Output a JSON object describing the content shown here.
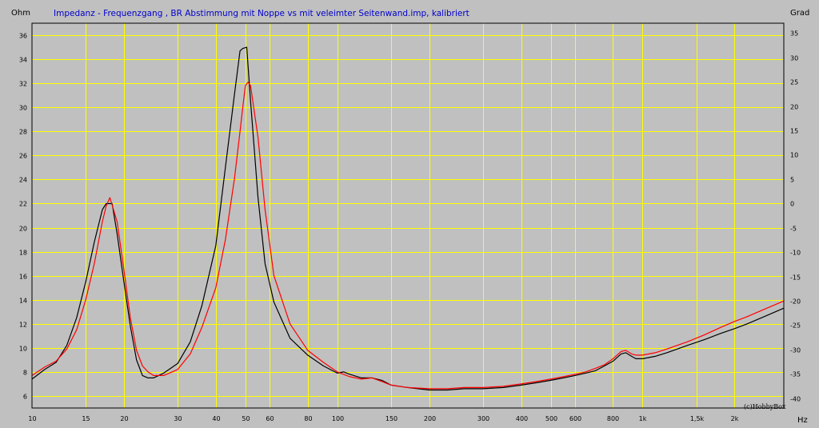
{
  "chart_data": {
    "type": "line",
    "title": "Impedanz - Frequenzgang , BR Abstimmung mit Noppe vs mit veleimter Seitenwand.imp, kalibriert",
    "ylabel_left": "Ohm",
    "ylabel_right": "Grad",
    "xlabel": "Hz",
    "credit": "(c)HobbyBox",
    "x_scale": "log",
    "xlim": [
      10,
      2900
    ],
    "ylim": [
      5,
      37
    ],
    "ylim_right": [
      -42,
      37
    ],
    "grid": true,
    "x_ticks": [
      {
        "v": 10,
        "label": "10"
      },
      {
        "v": 15,
        "label": "15"
      },
      {
        "v": 20,
        "label": "20"
      },
      {
        "v": 30,
        "label": "30"
      },
      {
        "v": 40,
        "label": "40"
      },
      {
        "v": 50,
        "label": "50"
      },
      {
        "v": 60,
        "label": "60"
      },
      {
        "v": 80,
        "label": "80"
      },
      {
        "v": 100,
        "label": "100"
      },
      {
        "v": 150,
        "label": "150"
      },
      {
        "v": 200,
        "label": "200"
      },
      {
        "v": 300,
        "label": "300"
      },
      {
        "v": 400,
        "label": "400"
      },
      {
        "v": 500,
        "label": "500"
      },
      {
        "v": 600,
        "label": "600"
      },
      {
        "v": 800,
        "label": "800"
      },
      {
        "v": 1000,
        "label": "1k"
      },
      {
        "v": 1500,
        "label": "1,5k"
      },
      {
        "v": 2000,
        "label": "2k"
      }
    ],
    "y_ticks_left": [
      "6",
      "8",
      "10",
      "12",
      "14",
      "16",
      "18",
      "20",
      "22",
      "24",
      "26",
      "28",
      "30",
      "32",
      "34",
      "36"
    ],
    "y_ticks_right": [
      "-40",
      "-35",
      "-30",
      "-25",
      "-20",
      "-15",
      "-10",
      "-5",
      "0",
      "5",
      "10",
      "15",
      "20",
      "25",
      "30",
      "35"
    ],
    "series": [
      {
        "color": "#000000",
        "x": [
          10,
          11,
          12,
          13,
          14,
          15,
          16,
          17,
          17.5,
          18.3,
          19,
          20,
          21,
          22,
          23,
          24,
          25,
          27,
          30,
          33,
          36,
          40,
          43,
          46,
          48,
          49,
          50.5,
          52,
          55,
          58,
          62,
          70,
          80,
          90,
          100,
          105,
          110,
          120,
          130,
          140,
          150,
          170,
          200,
          230,
          260,
          300,
          350,
          400,
          450,
          500,
          550,
          600,
          650,
          700,
          750,
          800,
          850,
          880,
          920,
          950,
          1000,
          1100,
          1200,
          1400,
          1600,
          1800,
          2000,
          2200,
          2500,
          2900
        ],
        "y": [
          7.4,
          8.2,
          8.8,
          10.2,
          12.5,
          15.5,
          18.8,
          21.5,
          22.0,
          22.0,
          19.5,
          15.5,
          11.8,
          9.0,
          7.7,
          7.5,
          7.5,
          7.9,
          8.7,
          10.5,
          13.5,
          18.5,
          25.0,
          31.0,
          34.7,
          34.9,
          35.0,
          30.5,
          22.5,
          17.0,
          13.8,
          10.8,
          9.4,
          8.5,
          7.9,
          8.0,
          7.8,
          7.5,
          7.5,
          7.3,
          6.9,
          6.7,
          6.5,
          6.5,
          6.6,
          6.6,
          6.7,
          6.9,
          7.1,
          7.3,
          7.5,
          7.7,
          7.9,
          8.1,
          8.5,
          8.9,
          9.5,
          9.6,
          9.3,
          9.1,
          9.1,
          9.3,
          9.6,
          10.2,
          10.7,
          11.2,
          11.6,
          12.0,
          12.6,
          13.3
        ]
      },
      {
        "color": "#ff0000",
        "x": [
          10,
          11,
          12,
          13,
          14,
          15,
          16,
          17,
          17.5,
          18,
          19,
          20,
          21,
          22,
          23,
          24,
          25,
          27,
          30,
          33,
          36,
          40,
          43,
          46,
          48,
          49,
          50,
          51,
          52,
          55,
          58,
          62,
          70,
          80,
          90,
          100,
          110,
          120,
          130,
          140,
          150,
          170,
          200,
          230,
          260,
          300,
          350,
          400,
          450,
          500,
          550,
          600,
          650,
          700,
          750,
          800,
          850,
          880,
          920,
          950,
          1000,
          1100,
          1200,
          1400,
          1600,
          1800,
          2000,
          2200,
          2500,
          2900
        ],
        "y": [
          7.7,
          8.4,
          8.9,
          9.9,
          11.5,
          14.0,
          17.0,
          20.5,
          21.8,
          22.5,
          20.5,
          16.5,
          12.5,
          9.8,
          8.5,
          8.0,
          7.7,
          7.7,
          8.2,
          9.5,
          11.7,
          15.0,
          19.0,
          24.0,
          28.0,
          30.0,
          31.8,
          32.1,
          31.8,
          27.5,
          21.5,
          16.0,
          12.0,
          9.8,
          8.8,
          8.0,
          7.6,
          7.4,
          7.5,
          7.2,
          6.9,
          6.7,
          6.6,
          6.6,
          6.7,
          6.7,
          6.8,
          7.0,
          7.2,
          7.4,
          7.6,
          7.8,
          8.0,
          8.3,
          8.6,
          9.1,
          9.7,
          9.8,
          9.5,
          9.4,
          9.4,
          9.6,
          9.9,
          10.5,
          11.1,
          11.7,
          12.2,
          12.6,
          13.2,
          13.9
        ]
      }
    ]
  },
  "colors": {
    "background": "#c0c0c0",
    "grid": "#ffff00",
    "title": "#0000cc",
    "border": "#000000"
  }
}
